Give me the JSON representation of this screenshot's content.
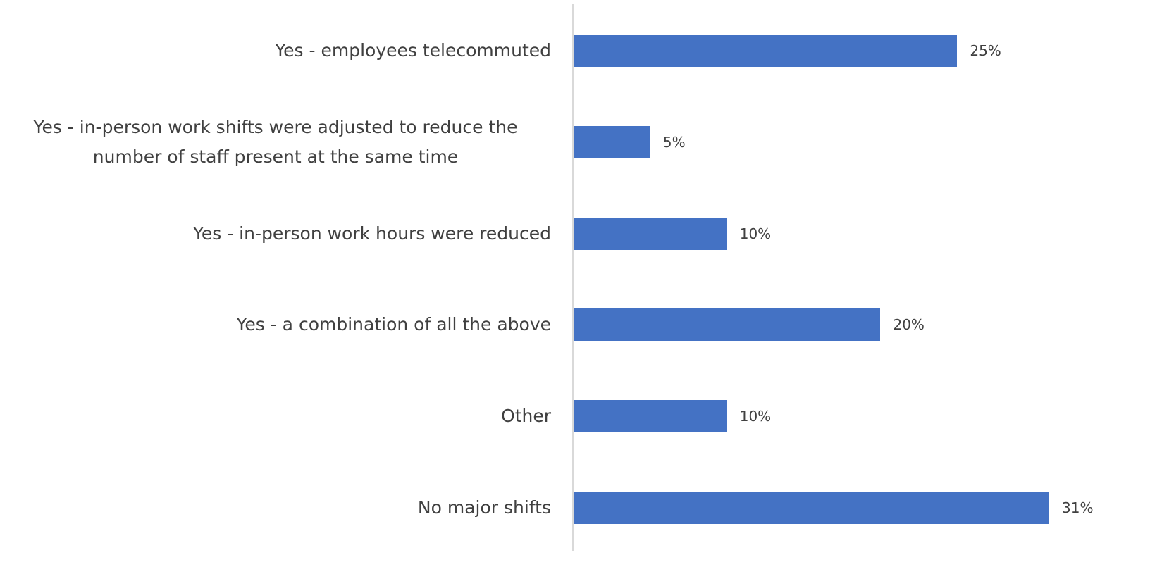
{
  "chart_data": {
    "type": "barh",
    "categories": [
      "Yes - employees telecommuted",
      "Yes - in-person work shifts were adjusted to reduce the number of staff present at the same time",
      "Yes - in-person work hours were reduced",
      "Yes - a combination of all the above",
      "Other",
      "No major shifts"
    ],
    "values": [
      25,
      5,
      10,
      20,
      10,
      31
    ],
    "value_labels": [
      "25%",
      "5%",
      "10%",
      "20%",
      "10%",
      "31%"
    ],
    "color": "#4472c4"
  }
}
